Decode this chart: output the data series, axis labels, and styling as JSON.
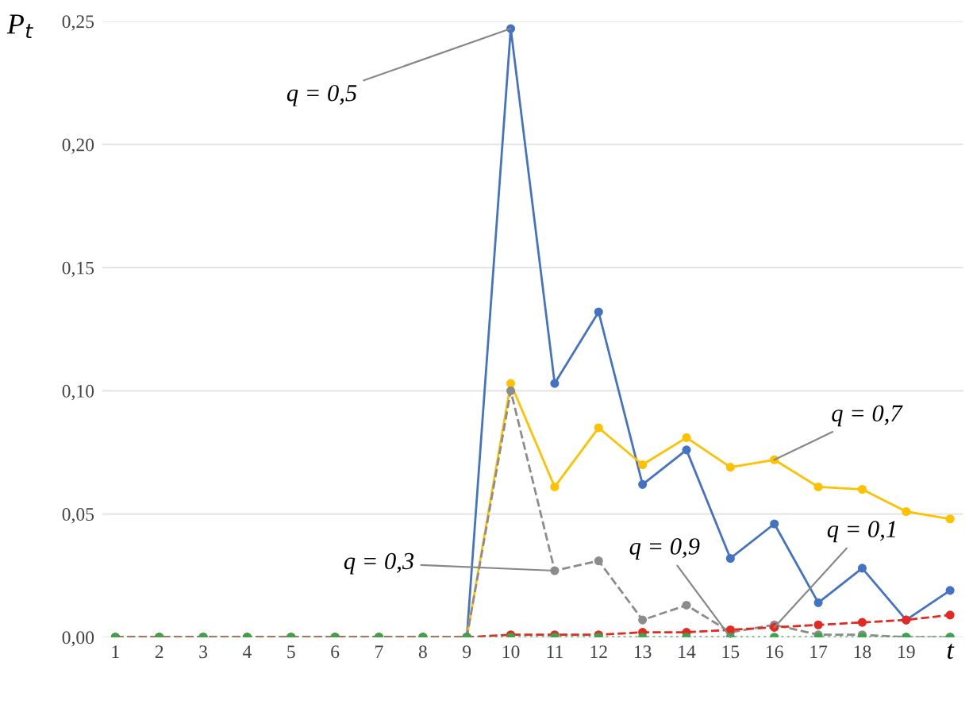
{
  "chart_data": {
    "type": "line",
    "xlabel": "t",
    "ylabel": "P$_{t}$",
    "categories": [
      "1",
      "2",
      "3",
      "4",
      "5",
      "6",
      "7",
      "8",
      "9",
      "10",
      "11",
      "12",
      "13",
      "14",
      "15",
      "16",
      "17",
      "18",
      "19",
      null
    ],
    "series": [
      {
        "color": "#4472c4",
        "line_style": "solid",
        "values": [
          null,
          null,
          null,
          null,
          null,
          null,
          null,
          null,
          0,
          0.247,
          0.103,
          0.132,
          0.062,
          0.076,
          0.032,
          0.046,
          0.014,
          0.028,
          0.007,
          0.019
        ]
      },
      {
        "color": "#ffc000",
        "line_style": "solid",
        "values": [
          null,
          null,
          null,
          null,
          null,
          null,
          null,
          null,
          0,
          0.103,
          0.061,
          0.085,
          0.07,
          0.081,
          0.069,
          0.072,
          0.061,
          0.06,
          0.051,
          0.048
        ]
      },
      {
        "color": "#8c8c8c",
        "line_style": "dashed",
        "values": [
          0,
          0,
          0,
          0,
          0,
          0,
          0,
          0,
          0,
          0.1,
          0.027,
          0.031,
          0.007,
          0.013,
          0.002,
          0.005,
          0.001,
          0.001,
          0,
          0
        ]
      },
      {
        "color": "#e32a22",
        "line_style": "dashed",
        "values": [
          0,
          0,
          0,
          0,
          0,
          0,
          0,
          0,
          0,
          0.001,
          0.001,
          0.001,
          0.002,
          0.002,
          0.003,
          0.004,
          0.005,
          0.006,
          0.007,
          0.009
        ]
      },
      {
        "color": "#3aa54a",
        "line_style": "dotted",
        "values": [
          0,
          0,
          0,
          0,
          0,
          0,
          0,
          0,
          0,
          0,
          0,
          0,
          0,
          0,
          0,
          0,
          0,
          0,
          0,
          0
        ]
      }
    ],
    "annotations": [
      {
        "text": "q = 0,5",
        "x": "10",
        "y": 0.247
      },
      {
        "text": "q = 0,7",
        "x": "16",
        "y": 0.072
      },
      {
        "text": "q = 0,3",
        "x": "11",
        "y": 0.027
      },
      {
        "text": "q = 0,9",
        "x": "15",
        "y": 0
      },
      {
        "text": "q = 0,1",
        "x": "16",
        "y": 0.004
      }
    ],
    "ylim": [
      0,
      0.25
    ],
    "yticks": [
      {
        "value": 0,
        "label": "0,00"
      },
      {
        "value": 0.05,
        "label": "0,05"
      },
      {
        "value": 0.1,
        "label": "0,10"
      },
      {
        "value": 0.15,
        "label": "0,15"
      },
      {
        "value": 0.2,
        "label": "0,20"
      },
      {
        "value": 0.25,
        "label": "0,25"
      }
    ],
    "grid": "y",
    "marker": "circle"
  }
}
